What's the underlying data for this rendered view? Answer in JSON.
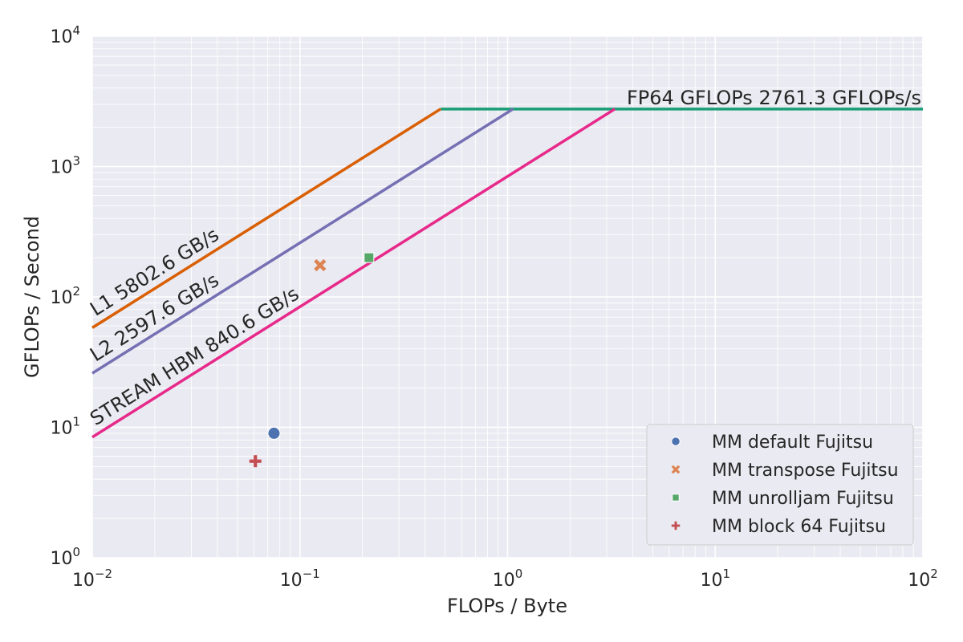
{
  "chart_data": {
    "type": "scatter",
    "xlabel": "FLOPs / Byte",
    "ylabel": "GFLOPs / Second",
    "xscale": "log",
    "yscale": "log",
    "xlim": [
      0.01,
      100
    ],
    "ylim": [
      1,
      10000
    ],
    "grid": true,
    "x_ticks": [
      {
        "base": "10",
        "exp": "−2",
        "value": 0.01
      },
      {
        "base": "10",
        "exp": "−1",
        "value": 0.1
      },
      {
        "base": "10",
        "exp": "0",
        "value": 1
      },
      {
        "base": "10",
        "exp": "1",
        "value": 10
      },
      {
        "base": "10",
        "exp": "2",
        "value": 100
      }
    ],
    "y_ticks": [
      {
        "base": "10",
        "exp": "0",
        "value": 1
      },
      {
        "base": "10",
        "exp": "1",
        "value": 10
      },
      {
        "base": "10",
        "exp": "2",
        "value": 100
      },
      {
        "base": "10",
        "exp": "3",
        "value": 1000
      },
      {
        "base": "10",
        "exp": "4",
        "value": 10000
      }
    ],
    "compute_roof": {
      "label": "FP64 GFLOPs 2761.3 GFLOPs/s",
      "value": 2761.3,
      "color": "#1b9e77"
    },
    "bandwidth_roofs": [
      {
        "label": "L1 5802.6 GB/s",
        "bandwidth": 5802.6,
        "color": "#d95f02"
      },
      {
        "label": "L2 2597.6 GB/s",
        "bandwidth": 2597.6,
        "color": "#7570b3"
      },
      {
        "label": "STREAM HBM 840.6 GB/s",
        "bandwidth": 840.6,
        "color": "#e7298a"
      }
    ],
    "series": [
      {
        "name": "MM default Fujitsu",
        "marker": "circle",
        "color": "#4c72b0",
        "x": 0.075,
        "y": 9.0
      },
      {
        "name": "MM transpose Fujitsu",
        "marker": "x",
        "color": "#dd8452",
        "x": 0.125,
        "y": 175
      },
      {
        "name": "MM unrolljam Fujitsu",
        "marker": "square",
        "color": "#55a868",
        "x": 0.215,
        "y": 200
      },
      {
        "name": "MM block 64 Fujitsu",
        "marker": "plus",
        "color": "#c44e52",
        "x": 0.061,
        "y": 5.5
      }
    ],
    "legend_position": "lower-right"
  },
  "colors": {
    "plot_background": "#eaeaf2",
    "grid": "#ffffff",
    "text": "#262626"
  }
}
